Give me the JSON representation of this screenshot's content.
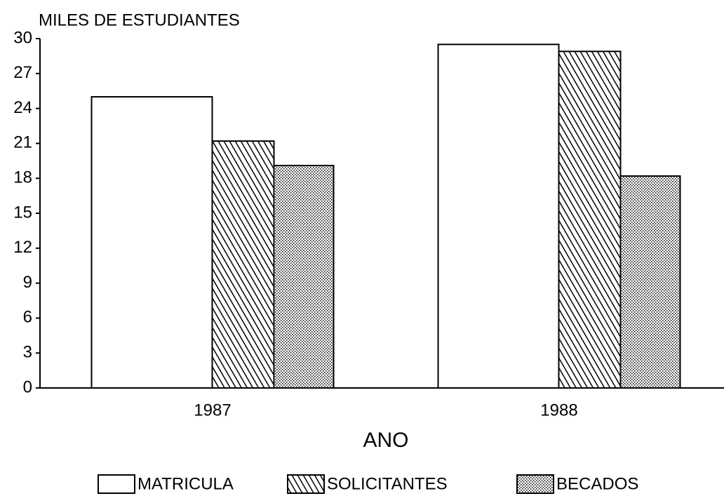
{
  "chart_data": {
    "type": "bar",
    "title": "MILES DE ESTUDIANTES",
    "xlabel": "ANO",
    "categories": [
      "1987",
      "1988"
    ],
    "series": [
      {
        "name": "MATRICULA",
        "color": "#ffffff",
        "pattern": "none",
        "values": [
          25.0,
          29.5
        ]
      },
      {
        "name": "SOLICITANTES",
        "color": "#000000",
        "pattern": "hatch",
        "values": [
          21.2,
          28.9
        ]
      },
      {
        "name": "BECADOS",
        "color": "#000000",
        "pattern": "dots",
        "values": [
          19.1,
          18.2
        ]
      }
    ],
    "ylim": [
      0,
      30
    ],
    "yticks": [
      0,
      3,
      6,
      9,
      12,
      15,
      18,
      21,
      24,
      27,
      30
    ],
    "grid": false,
    "legend": "bottom"
  }
}
